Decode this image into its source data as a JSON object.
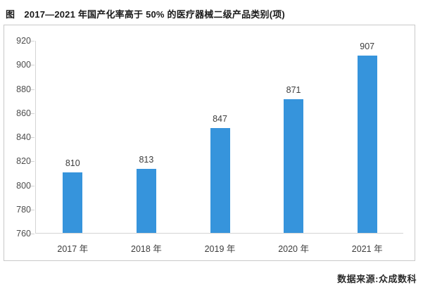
{
  "title": "图　2017—2021 年国产化率高于 50% 的医疗器械二级产品类别(项)",
  "source": "数据来源:众成数科",
  "colors": {
    "bar": "#3694DC",
    "axis": "#d4d4d4",
    "tick_label": "#4d4d4d",
    "value_label": "#3d3d3d",
    "frame_border": "#c9c9c9",
    "title_text": "#1a1a1a"
  },
  "chart_data": {
    "type": "bar",
    "title": "图　2017—2021 年国产化率高于 50% 的医疗器械二级产品类别(项)",
    "categories": [
      "2017 年",
      "2018 年",
      "2019 年",
      "2020 年",
      "2021 年"
    ],
    "values": [
      810,
      813,
      847,
      871,
      907
    ],
    "xlabel": "",
    "ylabel": "",
    "ylim": [
      760,
      920
    ],
    "ytick_step": 20,
    "yticks": [
      760,
      780,
      800,
      820,
      840,
      860,
      880,
      900,
      920
    ],
    "grid": false,
    "legend": false,
    "bar_color": "#3694DC",
    "value_labels_shown": true,
    "source_note": "数据来源:众成数科"
  }
}
